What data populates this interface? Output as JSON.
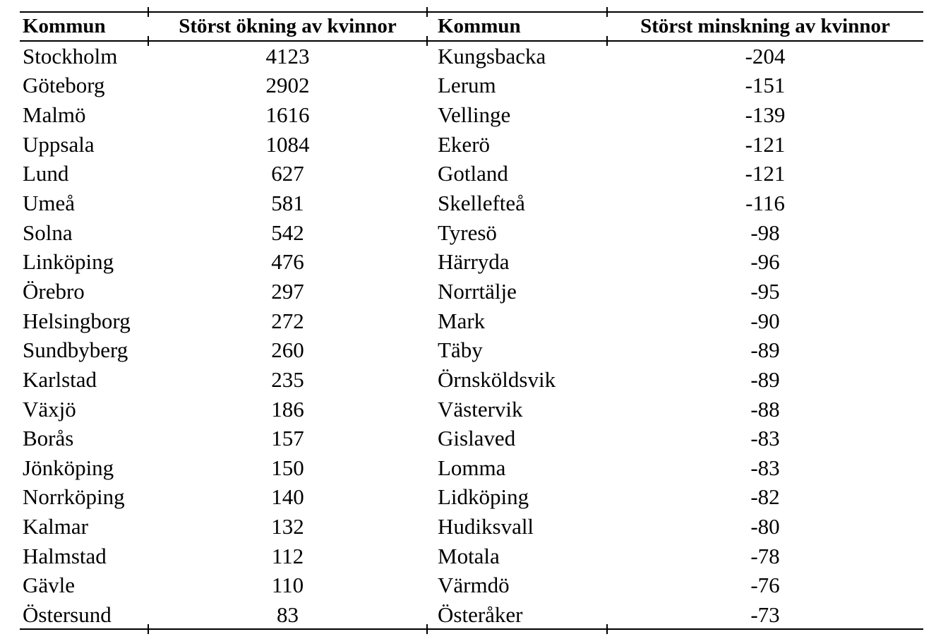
{
  "colors": {
    "background": "#ffffff",
    "text": "#000000",
    "rule": "#000000"
  },
  "table": {
    "columns": [
      {
        "label": "Kommun"
      },
      {
        "label": "Störst ökning av kvinnor"
      },
      {
        "label": "Kommun"
      },
      {
        "label": "Störst minskning av kvinnor"
      }
    ],
    "rows": [
      [
        "Stockholm",
        "4123",
        "Kungsbacka",
        "-204"
      ],
      [
        "Göteborg",
        "2902",
        "Lerum",
        "-151"
      ],
      [
        "Malmö",
        "1616",
        "Vellinge",
        "-139"
      ],
      [
        "Uppsala",
        "1084",
        "Ekerö",
        "-121"
      ],
      [
        "Lund",
        "627",
        "Gotland",
        "-121"
      ],
      [
        "Umeå",
        "581",
        "Skellefteå",
        "-116"
      ],
      [
        "Solna",
        "542",
        "Tyresö",
        "-98"
      ],
      [
        "Linköping",
        "476",
        "Härryda",
        "-96"
      ],
      [
        "Örebro",
        "297",
        "Norrtälje",
        "-95"
      ],
      [
        "Helsingborg",
        "272",
        "Mark",
        "-90"
      ],
      [
        "Sundbyberg",
        "260",
        "Täby",
        "-89"
      ],
      [
        "Karlstad",
        "235",
        "Örnsköldsvik",
        "-89"
      ],
      [
        "Växjö",
        "186",
        "Västervik",
        "-88"
      ],
      [
        "Borås",
        "157",
        "Gislaved",
        "-83"
      ],
      [
        "Jönköping",
        "150",
        "Lomma",
        "-83"
      ],
      [
        "Norrköping",
        "140",
        "Lidköping",
        "-82"
      ],
      [
        "Kalmar",
        "132",
        "Hudiksvall",
        "-80"
      ],
      [
        "Halmstad",
        "112",
        "Motala",
        "-78"
      ],
      [
        "Gävle",
        "110",
        "Värmdö",
        "-76"
      ],
      [
        "Östersund",
        "83",
        "Österåker",
        "-73"
      ]
    ]
  }
}
